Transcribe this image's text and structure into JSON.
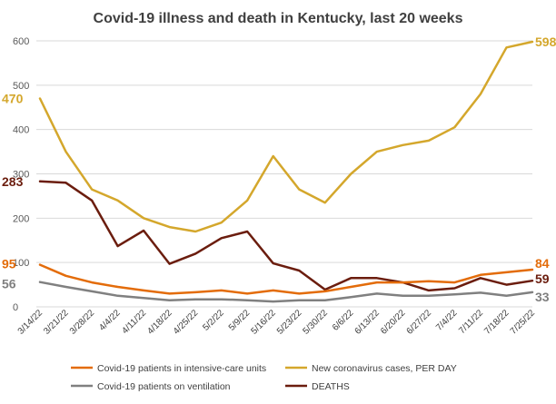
{
  "chart_data": {
    "type": "line",
    "title": "Covid-19 illness and death in Kentucky, last 20 weeks",
    "xlabel": "",
    "ylabel": "",
    "ylim": [
      0,
      600
    ],
    "yticks": [
      0,
      100,
      200,
      300,
      400,
      500,
      600
    ],
    "grid": true,
    "legend_position": "bottom",
    "categories": [
      "3/14/22",
      "3/21/22",
      "3/28/22",
      "4/4/22",
      "4/11/22",
      "4/18/22",
      "4/25/22",
      "5/2/22",
      "5/9/22",
      "5/16/22",
      "5/23/22",
      "5/30/22",
      "6/6/22",
      "6/13/22",
      "6/20/22",
      "6/27/22",
      "7/4/22",
      "7/11/22",
      "7/18/22",
      "7/25/22"
    ],
    "series": [
      {
        "name": "Covid-19 patients in intensive-care units",
        "color": "#e36c0a",
        "values": [
          95,
          70,
          55,
          45,
          37,
          30,
          33,
          37,
          30,
          37,
          30,
          35,
          45,
          55,
          55,
          58,
          55,
          72,
          78,
          84
        ],
        "start_label": "95",
        "end_label": "84"
      },
      {
        "name": "New coronavirus cases, PER DAY",
        "color": "#d4a72c",
        "values": [
          470,
          350,
          265,
          240,
          200,
          180,
          170,
          190,
          240,
          340,
          265,
          235,
          300,
          350,
          365,
          375,
          405,
          480,
          585,
          598
        ],
        "start_label": "470",
        "end_label": "598"
      },
      {
        "name": "Covid-19 patients on ventilation",
        "color": "#808080",
        "values": [
          56,
          45,
          35,
          25,
          20,
          15,
          17,
          17,
          15,
          12,
          15,
          15,
          22,
          30,
          25,
          25,
          28,
          32,
          25,
          33
        ],
        "start_label": "56",
        "end_label": "33"
      },
      {
        "name": "DEATHS",
        "color": "#6b1d0e",
        "values": [
          283,
          280,
          240,
          137,
          172,
          97,
          120,
          155,
          170,
          98,
          82,
          39,
          65,
          65,
          55,
          37,
          42,
          65,
          50,
          59
        ],
        "start_label": "283",
        "end_label": "59"
      }
    ]
  }
}
